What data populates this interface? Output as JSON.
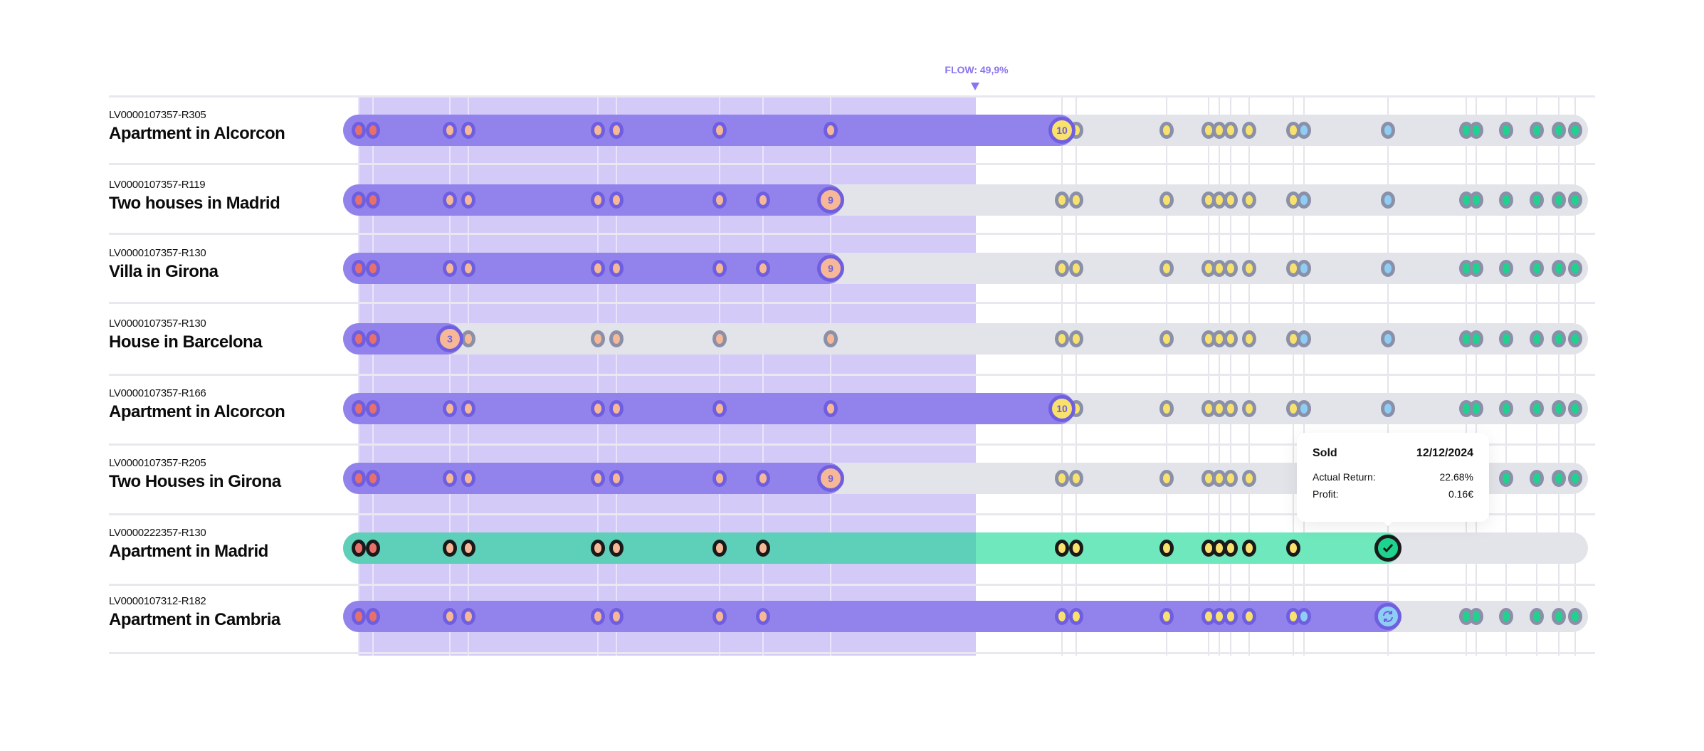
{
  "flow": {
    "label": "FLOW: 49,9%",
    "value_percent": 49.9
  },
  "colors": {
    "progress": "#9283ec",
    "shade": "#d3caf8",
    "track": "#e3e4e9",
    "sold": "#6fe8bd",
    "ring_active": "#6f5fe0",
    "ring_pending": "#8a90a8",
    "ring_sold": "#1a1a1a",
    "red": "#e8706a",
    "peach": "#f6b896",
    "yellow": "#f8e16c",
    "blue": "#8ecdf4",
    "green": "#1dd38e"
  },
  "event_categories": [
    "red",
    "red",
    "peach",
    "peach",
    "peach",
    "peach",
    "peach",
    "peach",
    "peach",
    "yellow",
    "yellow",
    "yellow",
    "yellow",
    "yellow",
    "yellow",
    "yellow",
    "yellow",
    "blue",
    "blue",
    "green",
    "green",
    "green",
    "green",
    "green",
    "green"
  ],
  "rows": [
    {
      "id": "LV0000107357-R305",
      "name": "Apartment in Alcorcon",
      "progress_event": 9,
      "badge": "10",
      "badge_color": "yellow",
      "status": "active",
      "events": [
        0,
        1,
        2,
        3,
        4,
        5,
        6,
        8,
        10,
        11,
        12,
        13,
        14,
        15,
        16,
        17,
        18,
        19,
        20,
        21,
        22,
        23,
        24
      ]
    },
    {
      "id": "LV0000107357-R119",
      "name": "Two houses in Madrid",
      "progress_event": 8,
      "badge": "9",
      "badge_color": "peach",
      "status": "active",
      "events": [
        0,
        1,
        2,
        3,
        4,
        5,
        6,
        7,
        9,
        10,
        11,
        12,
        13,
        14,
        15,
        16,
        17,
        18,
        19,
        20,
        21,
        22,
        23,
        24
      ]
    },
    {
      "id": "LV0000107357-R130",
      "name": "Villa in Girona",
      "progress_event": 8,
      "badge": "9",
      "badge_color": "peach",
      "status": "active",
      "events": [
        0,
        1,
        2,
        3,
        4,
        5,
        6,
        7,
        9,
        10,
        11,
        12,
        13,
        14,
        15,
        16,
        17,
        18,
        19,
        20,
        21,
        22,
        23,
        24
      ]
    },
    {
      "id": "LV0000107357-R130",
      "name": "House in Barcelona",
      "progress_event": 2,
      "badge": "3",
      "badge_color": "peach",
      "status": "active",
      "events": [
        0,
        1,
        3,
        4,
        5,
        6,
        8,
        9,
        10,
        11,
        12,
        13,
        14,
        15,
        16,
        17,
        18,
        19,
        20,
        21,
        22,
        23,
        24
      ]
    },
    {
      "id": "LV0000107357-R166",
      "name": "Apartment in Alcorcon",
      "progress_event": 9,
      "badge": "10",
      "badge_color": "yellow",
      "status": "active",
      "events": [
        0,
        1,
        2,
        3,
        4,
        5,
        6,
        8,
        10,
        11,
        12,
        13,
        14,
        15,
        16,
        17,
        18,
        19,
        20,
        21,
        22,
        23,
        24
      ]
    },
    {
      "id": "LV0000107357-R205",
      "name": "Two Houses in Girona",
      "progress_event": 8,
      "badge": "9",
      "badge_color": "peach",
      "status": "active",
      "events": [
        0,
        1,
        2,
        3,
        4,
        5,
        6,
        7,
        9,
        10,
        11,
        12,
        13,
        14,
        15,
        21,
        22,
        23,
        24
      ]
    },
    {
      "id": "LV0000222357-R130",
      "name": "Apartment in Madrid",
      "progress_event": 18,
      "badge": "check",
      "badge_color": "green",
      "status": "sold",
      "events": [
        0,
        1,
        2,
        3,
        4,
        5,
        6,
        7,
        9,
        10,
        11,
        12,
        13,
        14,
        15,
        16
      ]
    },
    {
      "id": "LV0000107312-R182",
      "name": "Apartment in Cambria",
      "progress_event": 18,
      "badge": "sync",
      "badge_color": "blue",
      "status": "active",
      "events": [
        0,
        1,
        2,
        3,
        4,
        5,
        6,
        7,
        9,
        10,
        11,
        12,
        13,
        14,
        15,
        16,
        17,
        19,
        20,
        21,
        22,
        23,
        24
      ]
    }
  ],
  "tooltip": {
    "title": "Sold",
    "date": "12/12/2024",
    "return_label": "Actual Return:",
    "return_value": "22.68%",
    "profit_label": "Profit:",
    "profit_value": "0.16€"
  }
}
